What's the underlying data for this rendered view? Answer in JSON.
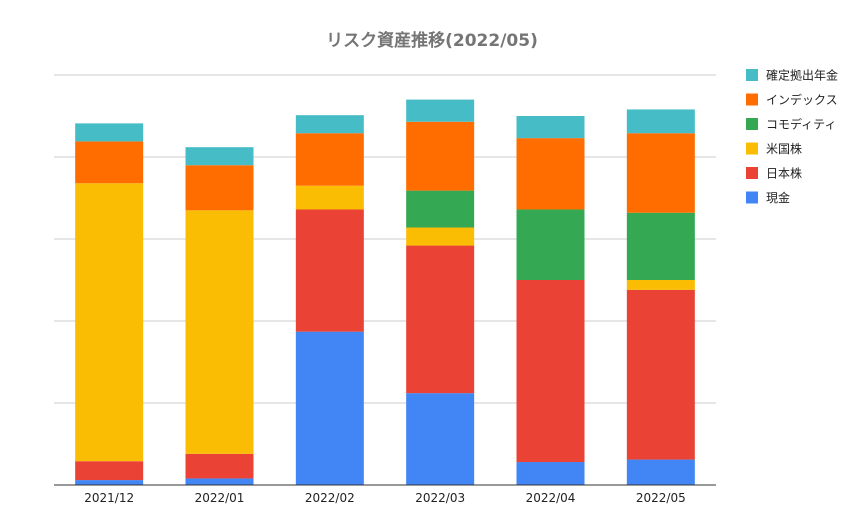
{
  "chart_data": {
    "type": "bar",
    "stacked": true,
    "title": "リスク資産推移(2022/05)",
    "xlabel": "",
    "ylabel": "",
    "ylim": [
      0,
      5
    ],
    "y_ticks_labeled": false,
    "grid": true,
    "legend_position": "right",
    "categories": [
      "2021/12",
      "2022/01",
      "2022/02",
      "2022/03",
      "2022/04",
      "2022/05"
    ],
    "series": [
      {
        "name": "現金",
        "color": "#4285F4",
        "values": [
          0.06,
          0.08,
          1.87,
          1.12,
          0.28,
          0.31
        ]
      },
      {
        "name": "日本株",
        "color": "#EA4335",
        "values": [
          0.23,
          0.3,
          1.49,
          1.8,
          2.22,
          2.07
        ]
      },
      {
        "name": "米国株",
        "color": "#FBBC04",
        "values": [
          3.39,
          2.97,
          0.29,
          0.22,
          0.0,
          0.12
        ]
      },
      {
        "name": "コモディティ",
        "color": "#34A853",
        "values": [
          0.0,
          0.0,
          0.0,
          0.45,
          0.86,
          0.82
        ]
      },
      {
        "name": "インデックス",
        "color": "#FF6D01",
        "values": [
          0.51,
          0.55,
          0.64,
          0.84,
          0.87,
          0.97
        ]
      },
      {
        "name": "確定拠出年金",
        "color": "#46BDC6",
        "values": [
          0.22,
          0.22,
          0.22,
          0.27,
          0.27,
          0.29
        ]
      }
    ]
  }
}
